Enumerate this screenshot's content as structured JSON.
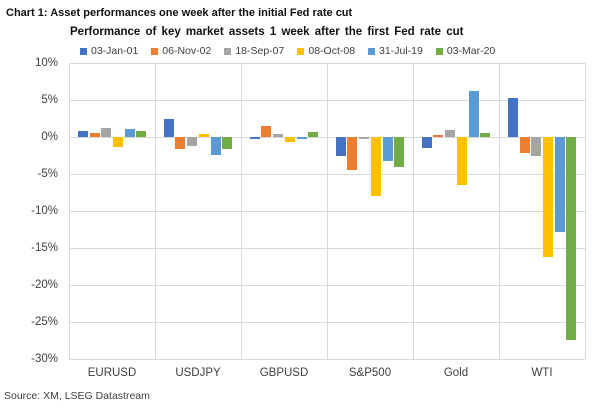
{
  "figure": {
    "title": "Chart 1: Asset performances one week after the initial Fed rate cut",
    "source": "Source: XM, LSEG Datastream"
  },
  "chart_data": {
    "type": "bar",
    "title": "Performance of key market assets 1 week after the first Fed rate cut",
    "categories": [
      "EURUSD",
      "USDJPY",
      "GBPUSD",
      "S&P500",
      "Gold",
      "WTI"
    ],
    "series": [
      {
        "name": "03-Jan-01",
        "color": "#4472C4",
        "values": [
          0.8,
          2.4,
          -0.3,
          -2.5,
          -1.5,
          5.3
        ]
      },
      {
        "name": "06-Nov-02",
        "color": "#ED7D31",
        "values": [
          0.5,
          -1.6,
          1.5,
          -4.5,
          0.3,
          -2.2
        ]
      },
      {
        "name": "18-Sep-07",
        "color": "#A5A5A5",
        "values": [
          1.2,
          -1.2,
          0.4,
          -0.2,
          1.0,
          -2.5
        ]
      },
      {
        "name": "08-Oct-08",
        "color": "#FFC000",
        "values": [
          -1.3,
          0.4,
          -0.7,
          -7.9,
          -6.5,
          -16.2
        ]
      },
      {
        "name": "31-Jul-19",
        "color": "#5B9BD5",
        "values": [
          1.1,
          -2.4,
          -0.2,
          -3.3,
          6.2,
          -12.8
        ]
      },
      {
        "name": "03-Mar-20",
        "color": "#70AD47",
        "values": [
          0.8,
          -1.6,
          0.7,
          -4.0,
          0.6,
          -27.4
        ]
      }
    ],
    "ylabel": "",
    "xlabel": "",
    "ylim": [
      -30,
      10
    ],
    "ytick_step": 5,
    "ytick_labels": [
      "10%",
      "5%",
      "0%",
      "-5%",
      "-10%",
      "-15%",
      "-20%",
      "-25%",
      "-30%"
    ],
    "grid": true,
    "gridline_color": "#d9d9d9",
    "legend_position": "top"
  }
}
